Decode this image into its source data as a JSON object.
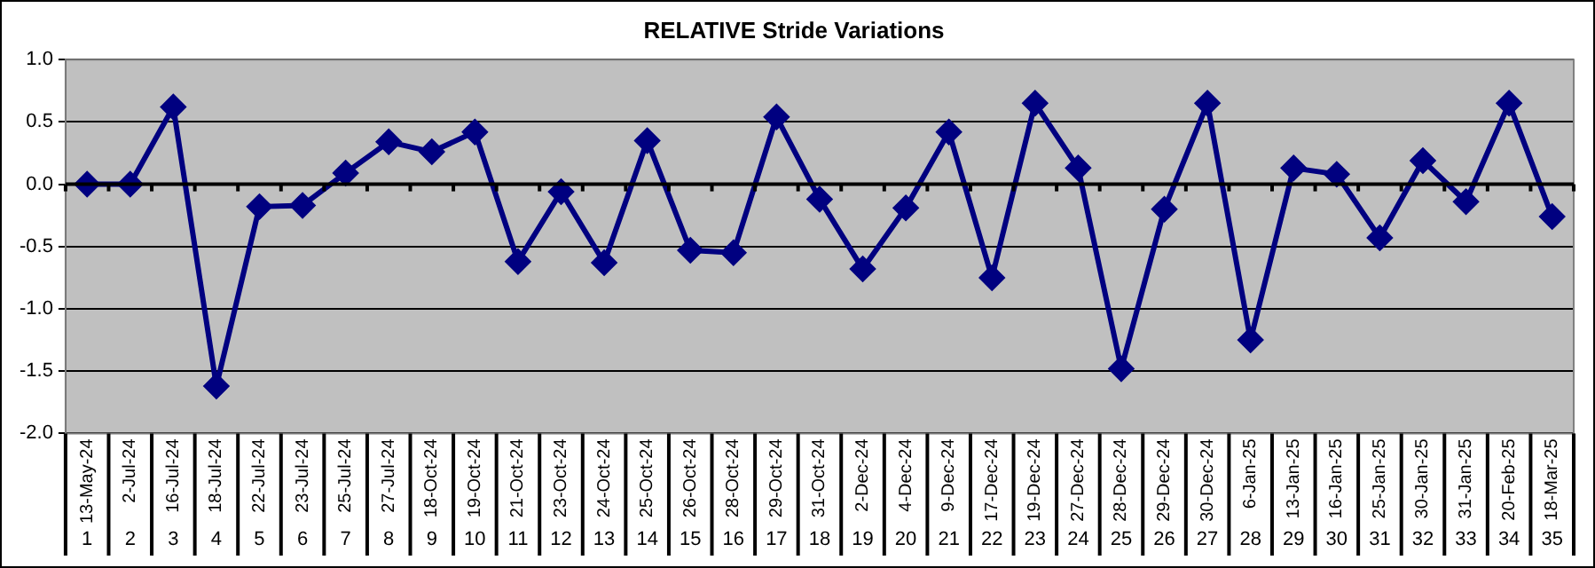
{
  "chart_data": {
    "type": "line",
    "title": "RELATIVE Stride Variations",
    "categories": [
      "13-May-24\n1",
      "2-Jul-24\n2",
      "16-Jul-24\n3",
      "18-Jul-24\n4",
      "22-Jul-24\n5",
      "23-Jul-24\n6",
      "25-Jul-24\n7",
      "27-Jul-24\n8",
      "18-Oct-24\n9",
      "19-Oct-24\n10",
      "21-Oct-24\n11",
      "23-Oct-24\n12",
      "24-Oct-24\n13",
      "25-Oct-24\n14",
      "26-Oct-24\n15",
      "28-Oct-24\n16",
      "29-Oct-24\n17",
      "31-Oct-24\n18",
      "2-Dec-24\n19",
      "4-Dec-24\n20",
      "9-Dec-24\n21",
      "17-Dec-24\n22",
      "19-Dec-24\n23",
      "27-Dec-24\n24",
      "28-Dec-24\n25",
      "29-Dec-24\n26",
      "30-Dec-24\n27",
      "6-Jan-25\n28",
      "13-Jan-25\n29",
      "16-Jan-25\n30",
      "25-Jan-25\n31",
      "30-Jan-25\n32",
      "31-Jan-25\n33",
      "20-Feb-25\n34",
      "18-Mar-25\n35"
    ],
    "series": [
      {
        "color": "#000080",
        "values": [
          0,
          0,
          0.62,
          -1.62,
          -0.18,
          -0.17,
          0.09,
          0.34,
          0.26,
          0.42,
          -0.62,
          -0.06,
          -0.63,
          0.35,
          -0.53,
          -0.55,
          0.54,
          -0.12,
          -0.68,
          -0.19,
          0.42,
          -0.75,
          0.65,
          0.13,
          -1.48,
          -0.2,
          0.65,
          -1.25,
          0.13,
          0.08,
          -0.43,
          0.19,
          -0.14,
          0.65,
          -0.26
        ]
      }
    ],
    "ylim": [
      -2,
      1
    ],
    "yticks": [
      {
        "value": -2,
        "label": "-2.0"
      },
      {
        "value": -1.5,
        "label": "-1.5"
      },
      {
        "value": -1,
        "label": "-1.0"
      },
      {
        "value": -0.5,
        "label": "-0.5"
      },
      {
        "value": 0,
        "label": "0.0"
      },
      {
        "value": 0.5,
        "label": "0.5"
      },
      {
        "value": 1,
        "label": "1.0"
      }
    ],
    "grid": "y",
    "legend": false,
    "marker": "diamond",
    "line_style": "solid"
  }
}
